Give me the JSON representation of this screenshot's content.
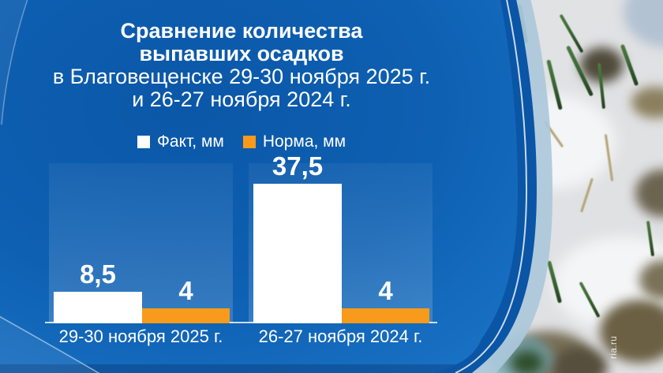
{
  "title": {
    "line1": "Сравнение количества",
    "line2": "выпавших осадков",
    "line3": "в Благовещенске 29-30 ноября 2025 г.",
    "line4": "и 26-27 ноября 2024 г."
  },
  "watermark": "ria.ru",
  "colors": {
    "panel_blue": "#0d5fb2",
    "ring_dark_blue": "#0a55a5",
    "ring_light_blue": "#abc8db",
    "accent_orange": "#F89A1B",
    "text_white": "#ffffff"
  },
  "chart_data": {
    "type": "bar",
    "categories": [
      "29-30 ноября 2025 г.",
      "26-27 ноября 2024 г."
    ],
    "series": [
      {
        "name": "Факт, мм",
        "color": "#ffffff",
        "values": [
          8.5,
          37.5
        ],
        "labels": [
          "8,5",
          "37,5"
        ]
      },
      {
        "name": "Норма, мм",
        "color": "#F89A1B",
        "values": [
          4,
          4
        ],
        "labels": [
          "4",
          "4"
        ]
      }
    ],
    "title": "Сравнение количества выпавших осадков в Благовещенске 29-30 ноября 2025 г. и 26-27 ноября 2024 г.",
    "xlabel": "",
    "ylabel": "",
    "ylim": [
      0,
      42
    ],
    "grid": false,
    "legend_position": "top",
    "value_label_decimal_separator": ","
  }
}
